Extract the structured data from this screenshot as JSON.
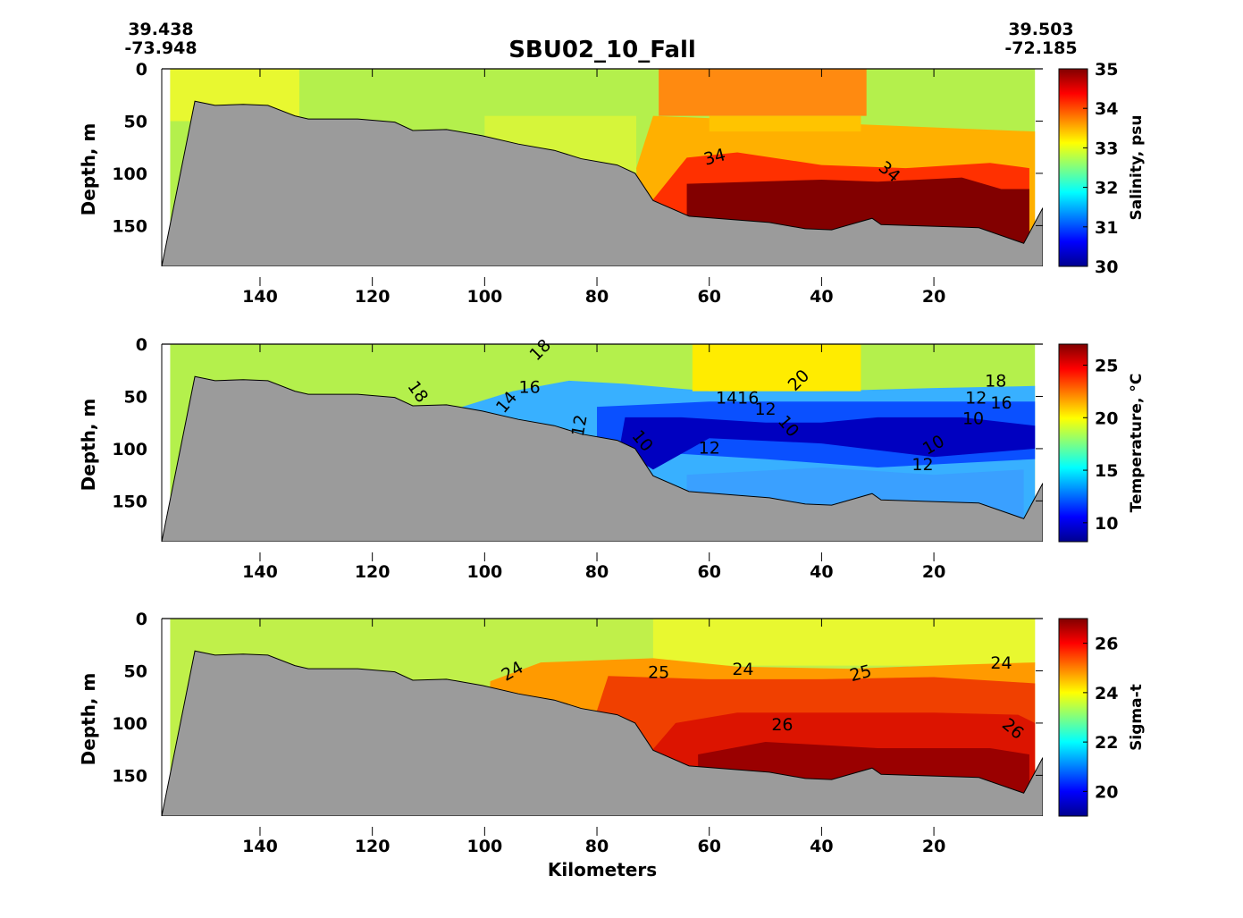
{
  "header": {
    "title": "SBU02_10_Fall",
    "start_lat": "39.438",
    "start_lon": "-73.948",
    "end_lat": "39.503",
    "end_lon": "-72.185"
  },
  "chart_data": [
    {
      "type": "heatmap",
      "variable": "salinity",
      "xlabel": "",
      "ylabel": "Depth, m",
      "colorbar_label": "Salinity, psu",
      "xlim": [
        157.5,
        0.6
      ],
      "ylim": [
        0,
        189
      ],
      "xticks": [
        "140",
        "120",
        "100",
        "80",
        "60",
        "40",
        "20"
      ],
      "yticks": [
        "0",
        "50",
        "100",
        "150"
      ],
      "clim": [
        30,
        35
      ],
      "cticks": [
        "30",
        "31",
        "32",
        "33",
        "34",
        "35"
      ],
      "contour_labels": [
        {
          "text": "34",
          "km": 59,
          "depth": 85,
          "rot": -15
        },
        {
          "text": "34",
          "km": 28,
          "depth": 99,
          "rot": 40
        }
      ]
    },
    {
      "type": "heatmap",
      "variable": "temperature",
      "xlabel": "",
      "ylabel": "Depth, m",
      "colorbar_label": "Temperature, °C",
      "xlim": [
        157.5,
        0.6
      ],
      "ylim": [
        0,
        189
      ],
      "xticks": [
        "140",
        "120",
        "100",
        "80",
        "60",
        "40",
        "20"
      ],
      "yticks": [
        "0",
        "50",
        "100",
        "150"
      ],
      "clim": [
        8.2,
        27
      ],
      "cticks": [
        "10",
        "15",
        "20",
        "25"
      ],
      "contour_labels": [
        {
          "text": "18",
          "km": 90,
          "depth": 6,
          "rot": -45
        },
        {
          "text": "18",
          "km": 112,
          "depth": 46,
          "rot": 55
        },
        {
          "text": "14",
          "km": 96,
          "depth": 56,
          "rot": -50
        },
        {
          "text": "16",
          "km": 92,
          "depth": 42,
          "rot": 0
        },
        {
          "text": "12",
          "km": 83,
          "depth": 78,
          "rot": -80
        },
        {
          "text": "10",
          "km": 72,
          "depth": 93,
          "rot": 50
        },
        {
          "text": "12",
          "km": 60,
          "depth": 100,
          "rot": 0
        },
        {
          "text": "1416",
          "km": 55,
          "depth": 52,
          "rot": 0
        },
        {
          "text": "12",
          "km": 50,
          "depth": 63,
          "rot": 0
        },
        {
          "text": "10",
          "km": 46,
          "depth": 79,
          "rot": 50
        },
        {
          "text": "20",
          "km": 44,
          "depth": 35,
          "rot": -45
        },
        {
          "text": "10",
          "km": 13,
          "depth": 72,
          "rot": 0
        },
        {
          "text": "18",
          "km": 9,
          "depth": 36,
          "rot": 0
        },
        {
          "text": "16",
          "km": 8,
          "depth": 43,
          "rot": 0
        },
        {
          "text": "12",
          "km": 9,
          "depth": 52,
          "rot": 0
        },
        {
          "text": "10",
          "km": 20,
          "depth": 97,
          "rot": -30
        },
        {
          "text": "12",
          "km": 22,
          "depth": 116,
          "rot": 0
        }
      ]
    },
    {
      "type": "heatmap",
      "variable": "sigma-t",
      "xlabel": "Kilometers",
      "ylabel": "Depth, m",
      "colorbar_label": "Sigma-t",
      "xlim": [
        157.5,
        0.6
      ],
      "ylim": [
        0,
        189
      ],
      "xticks": [
        "140",
        "120",
        "100",
        "80",
        "60",
        "40",
        "20"
      ],
      "yticks": [
        "0",
        "50",
        "100",
        "150"
      ],
      "clim": [
        19,
        27
      ],
      "cticks": [
        "20",
        "22",
        "24",
        "26"
      ],
      "contour_labels": [
        {
          "text": "24",
          "km": 95,
          "depth": 51,
          "rot": -30
        },
        {
          "text": "25",
          "km": 69,
          "depth": 52,
          "rot": 0
        },
        {
          "text": "24",
          "km": 54,
          "depth": 49,
          "rot": 0
        },
        {
          "text": "25",
          "km": 33,
          "depth": 53,
          "rot": -15
        },
        {
          "text": "24",
          "km": 8,
          "depth": 43,
          "rot": 0
        },
        {
          "text": "26",
          "km": 47,
          "depth": 102,
          "rot": 0
        },
        {
          "text": "26",
          "km": 6,
          "depth": 106,
          "rot": 40
        }
      ]
    }
  ]
}
